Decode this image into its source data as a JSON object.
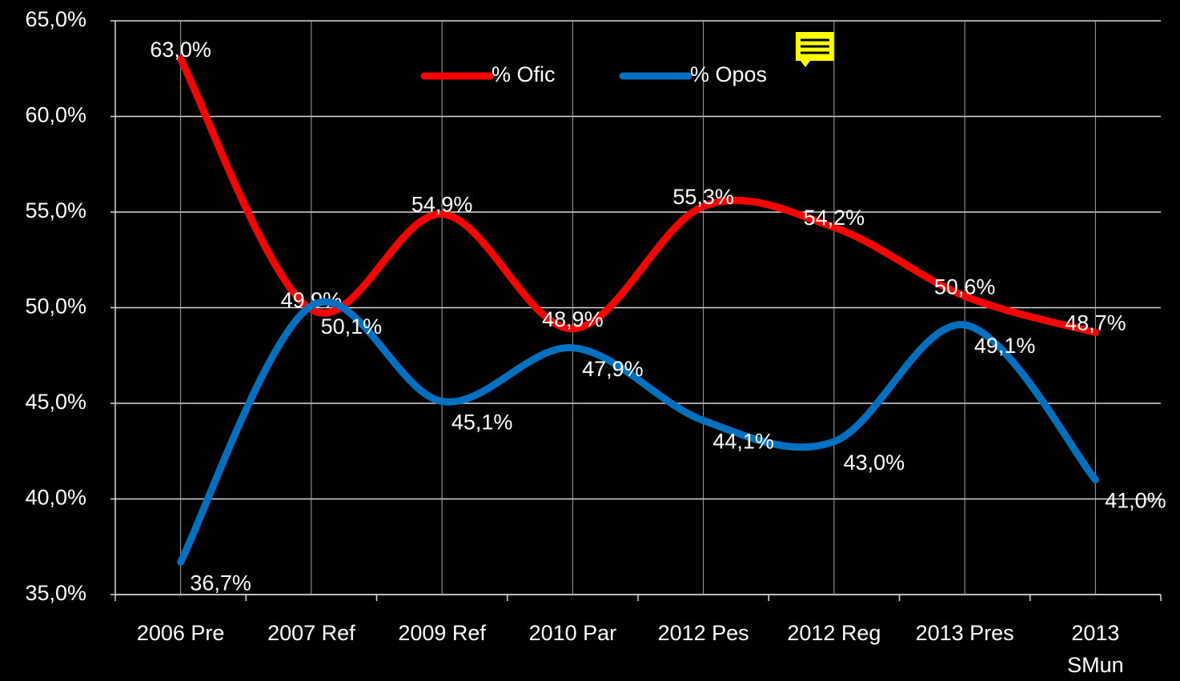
{
  "chart_data": {
    "type": "line",
    "categories": [
      "2006 Pre",
      "2007 Ref",
      "2009 Ref",
      "2010 Par",
      "2012 Pes",
      "2012 Reg",
      "2013 Pres",
      [
        "2013",
        "SMun"
      ]
    ],
    "series": [
      {
        "name": "% Ofic",
        "color": "#ff0000",
        "values": [
          63.0,
          49.9,
          54.9,
          48.9,
          55.3,
          54.2,
          50.6,
          48.7
        ],
        "value_labels": [
          "63,0%",
          "49,9%",
          "54,9%",
          "48,9%",
          "55,3%",
          "54,2%",
          "50,6%",
          "48,7%"
        ]
      },
      {
        "name": "% Opos",
        "color": "#0070c0",
        "values": [
          36.7,
          50.1,
          45.1,
          47.9,
          44.1,
          43.0,
          49.1,
          41.0
        ],
        "value_labels": [
          "36,7%",
          "50,1%",
          "45,1%",
          "47,9%",
          "44,1%",
          "43,0%",
          "49,1%",
          "41,0%"
        ]
      }
    ],
    "ylim": [
      35,
      65
    ],
    "yticks": [
      {
        "value": 35,
        "label": "35,0%"
      },
      {
        "value": 40,
        "label": "40,0%"
      },
      {
        "value": 45,
        "label": "45,0%"
      },
      {
        "value": 50,
        "label": "50,0%"
      },
      {
        "value": 55,
        "label": "55,0%"
      },
      {
        "value": 60,
        "label": "60,0%"
      },
      {
        "value": 65,
        "label": "65,0%"
      }
    ],
    "grid": true,
    "smooth": true,
    "legend": "top"
  }
}
